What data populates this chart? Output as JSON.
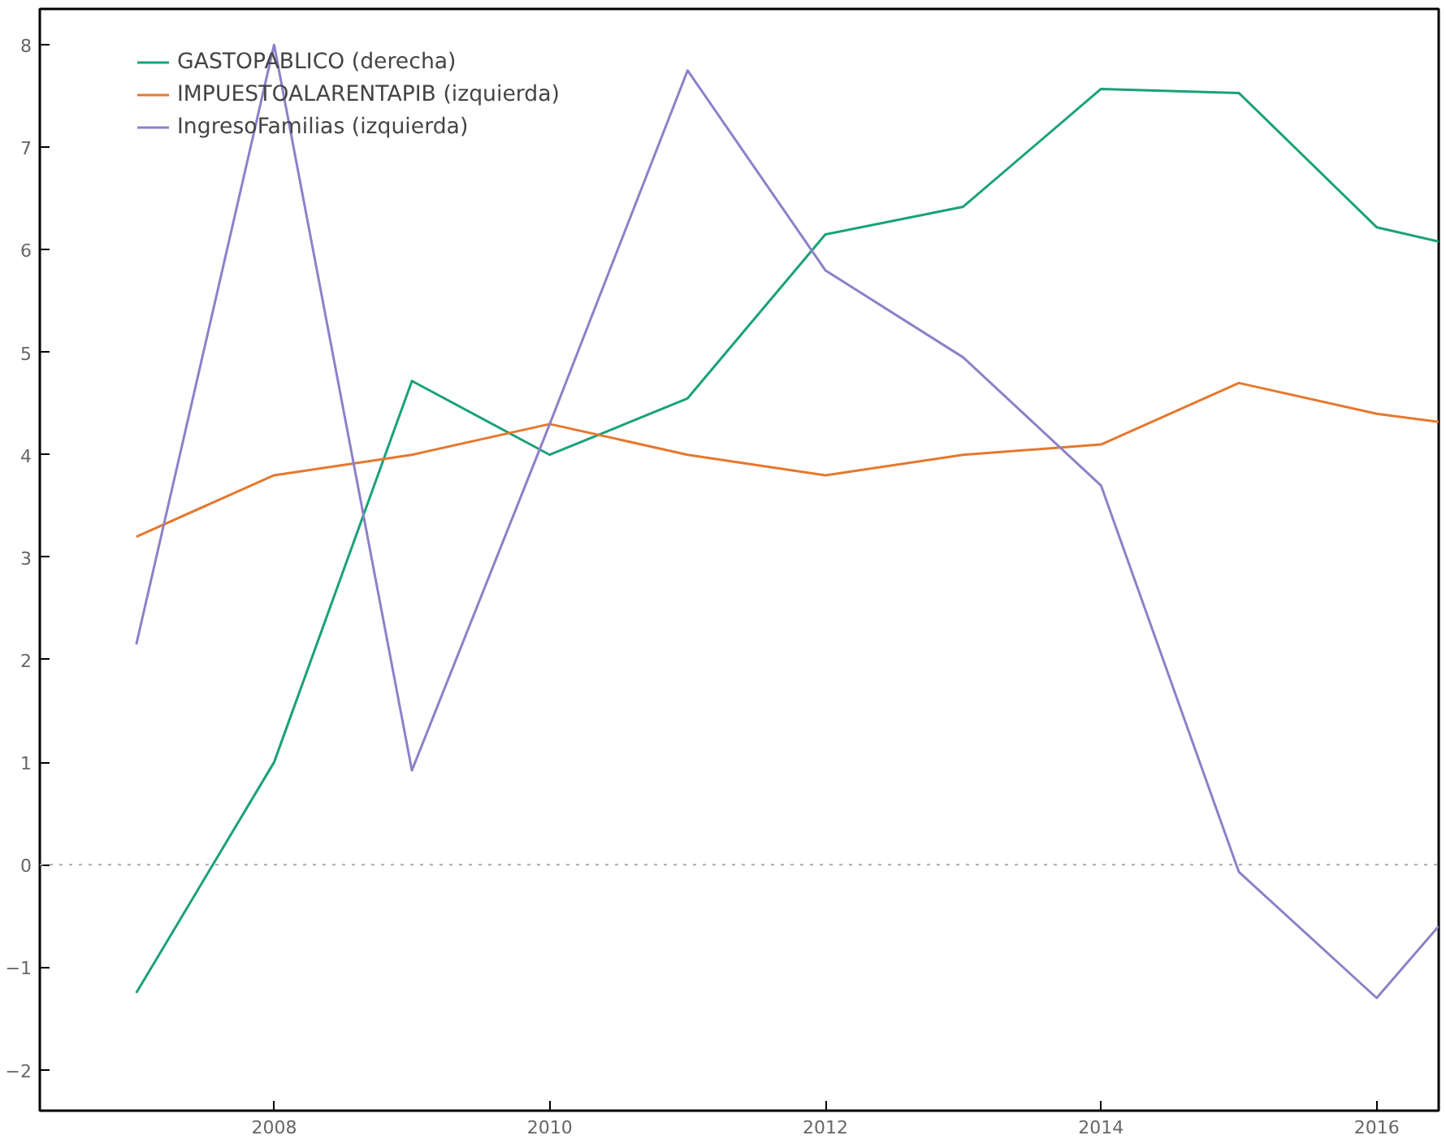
{
  "chart_data": {
    "type": "line",
    "x": [
      2007,
      2008,
      2009,
      2010,
      2011,
      2012,
      2013,
      2014,
      2015,
      2016,
      2016.45
    ],
    "series": [
      {
        "name": "GASTOPABLICO (derecha)",
        "color": "#1aa179",
        "values": [
          -1.25,
          1.0,
          4.72,
          4.0,
          4.55,
          6.15,
          6.42,
          7.57,
          7.53,
          6.22,
          6.08
        ]
      },
      {
        "name": "IMPUESTOALARENTAPIB (izquierda)",
        "color": "#e6782e",
        "values": [
          3.2,
          3.8,
          4.0,
          4.3,
          4.0,
          3.8,
          4.0,
          4.1,
          4.7,
          4.4,
          4.32
        ]
      },
      {
        "name": "IngresoFamilias (izquierda)",
        "color": "#8e80c8",
        "values": [
          2.15,
          8.0,
          0.92,
          4.3,
          7.75,
          5.8,
          4.95,
          3.7,
          -0.07,
          -1.3,
          -0.6
        ]
      }
    ],
    "xlim": [
      2006.3,
      2016.45
    ],
    "ylim": [
      -2.4,
      8.35
    ],
    "xticks": [
      2008,
      2010,
      2012,
      2014,
      2016
    ],
    "yticks": [
      -2,
      -1,
      0,
      1,
      2,
      3,
      4,
      5,
      6,
      7,
      8
    ],
    "ref_lines": [
      {
        "axis": "y",
        "value": 0,
        "color": "#aaaaaa",
        "line_style": "dotted"
      }
    ],
    "grid": false,
    "legend": "top left",
    "line_style": "solid"
  }
}
